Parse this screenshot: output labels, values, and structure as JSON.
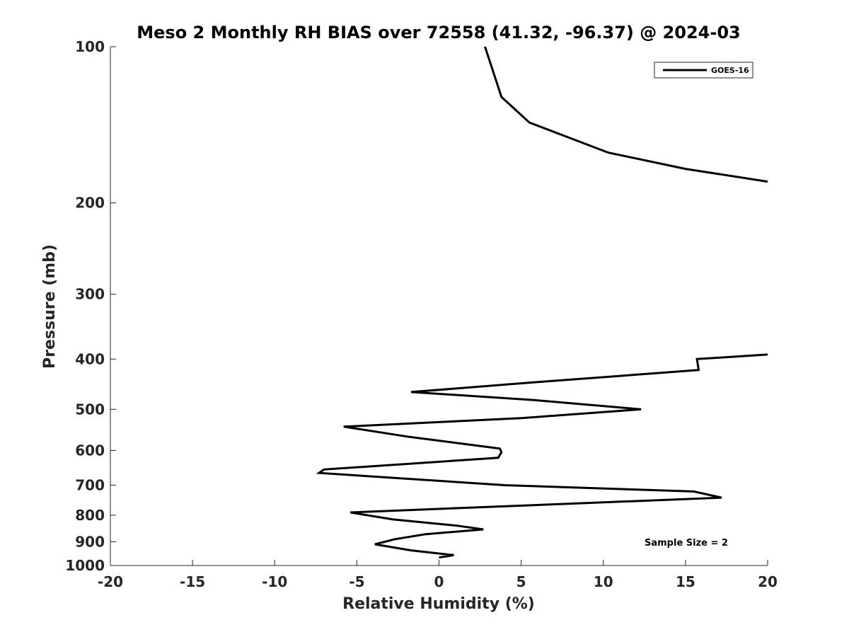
{
  "chart_data": {
    "type": "line",
    "title": "Meso 2 Monthly RH BIAS over 72558 (41.32, -96.37) @ 2024-03",
    "xlabel": "Relative Humidity (%)",
    "ylabel": "Pressure (mb)",
    "xlim": [
      -20,
      20
    ],
    "ylim": [
      100,
      1000
    ],
    "y_scale": "log",
    "y_reversed": true,
    "x_ticks": [
      -20,
      -15,
      -10,
      -5,
      0,
      5,
      10,
      15,
      20
    ],
    "y_ticks": [
      100,
      200,
      300,
      400,
      500,
      600,
      700,
      800,
      900,
      1000
    ],
    "grid": false,
    "legend_position": "top-right",
    "series": [
      {
        "name": "GOES-16",
        "color": "#000000",
        "segments": [
          {
            "x": [
              2.8,
              3.8,
              5.5,
              10.3,
              15.0,
              20.0
            ],
            "y": [
              100,
              125,
              140,
              160,
              172,
              182
            ]
          },
          {
            "x": [
              20.0,
              15.7,
              15.7,
              15.8,
              6.0,
              -1.7,
              5.8,
              12.3,
              5.0,
              -5.8,
              -1.8,
              3.7,
              3.8,
              3.6,
              -7.0,
              -7.3,
              4.0,
              15.5,
              17.2,
              -5.4,
              -2.8,
              1.1,
              2.7,
              -0.8,
              -2.7,
              -3.9,
              -1.7,
              0.9,
              0.0
            ],
            "y": [
              392,
              400,
              400,
              420,
              443,
              463,
              480,
              500,
              520,
              540,
              565,
              595,
              605,
              620,
              653,
              663,
              700,
              720,
              740,
              790,
              815,
              838,
              852,
              870,
              890,
              910,
              935,
              955,
              965
            ]
          }
        ]
      }
    ],
    "annotation": "Sample Size = 2"
  }
}
